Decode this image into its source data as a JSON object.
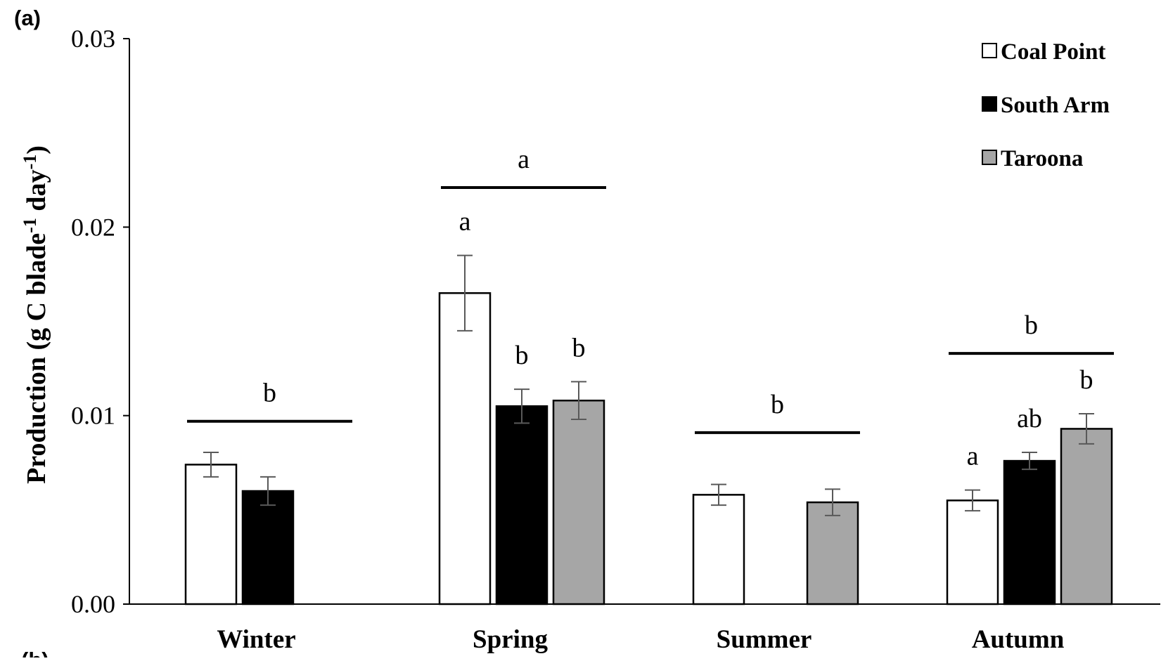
{
  "figure": {
    "panel_label": "(a)",
    "next_panel_label": "(b)"
  },
  "chart_data": {
    "type": "bar",
    "title": "",
    "xlabel": "",
    "ylabel": "Production (g C blade-1 day-1)",
    "ylabel_parts": {
      "a": "Production (g C blade",
      "sup1": "-1",
      "b": " day",
      "sup2": "-1",
      "c": ")"
    },
    "ylim": [
      0,
      0.03
    ],
    "yticks": [
      0,
      0.01,
      0.02,
      0.03
    ],
    "ytick_labels": [
      "0.00",
      "0.01",
      "0.02",
      "0.03"
    ],
    "categories": [
      "Winter",
      "Spring",
      "Summer",
      "Autumn"
    ],
    "series": [
      {
        "name": "Coal Point",
        "color": "#ffffff",
        "values": [
          0.0074,
          0.0165,
          0.0058,
          0.0055
        ],
        "errors": [
          0.00065,
          0.002,
          0.00055,
          0.00055
        ],
        "letters": [
          "",
          "a",
          "",
          "a"
        ]
      },
      {
        "name": "South Arm",
        "color": "#000000",
        "values": [
          0.006,
          0.0105,
          null,
          0.0076
        ],
        "errors": [
          0.00075,
          0.0009,
          null,
          0.00045
        ],
        "letters": [
          "",
          "b",
          "",
          "ab"
        ]
      },
      {
        "name": "Taroona",
        "color": "#a6a6a6",
        "values": [
          null,
          0.0108,
          0.0054,
          0.0093
        ],
        "errors": [
          null,
          0.001,
          0.0007,
          0.0008
        ],
        "letters": [
          "",
          "b",
          "",
          "b"
        ]
      }
    ],
    "group_labels": [
      {
        "category": "Winter",
        "letter": "b",
        "line_y": 0.0097
      },
      {
        "category": "Spring",
        "letter": "a",
        "line_y": 0.0221
      },
      {
        "category": "Summer",
        "letter": "b",
        "line_y": 0.0091
      },
      {
        "category": "Autumn",
        "letter": "b",
        "line_y": 0.0133
      }
    ],
    "legend": {
      "position": "top-right"
    },
    "grid": false
  }
}
